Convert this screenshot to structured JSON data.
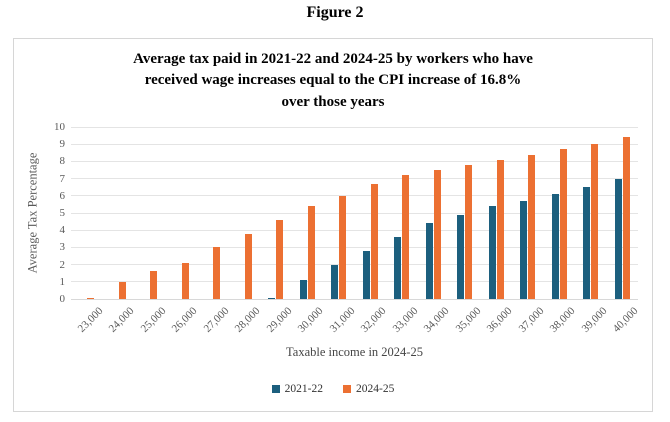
{
  "figure_label": "Figure 2",
  "chart_data": {
    "type": "bar",
    "title": "Average tax paid in 2021-22 and 2024-25 by workers who have received wage increases equal to the CPI increase of 16.8% over those years",
    "title_lines": [
      "Average tax paid in 2021-22 and 2024-25 by workers who have",
      "received wage increases equal to the CPI increase of 16.8%",
      "over those years"
    ],
    "categories": [
      "23,000",
      "24,000",
      "25,000",
      "26,000",
      "27,000",
      "28,000",
      "29,000",
      "30,000",
      "31,000",
      "32,000",
      "33,000",
      "34,000",
      "35,000",
      "36,000",
      "37,000",
      "38,000",
      "39,000",
      "40,000"
    ],
    "series": [
      {
        "name": "2021-22",
        "color": "#1c5f7e",
        "values": [
          0,
          0,
          0,
          0,
          0,
          0,
          0.07,
          1.1,
          2.0,
          2.8,
          3.6,
          4.4,
          4.9,
          5.4,
          5.7,
          6.1,
          6.5,
          7.0
        ]
      },
      {
        "name": "2024-25",
        "color": "#ec7032",
        "values": [
          0.05,
          1.0,
          1.6,
          2.1,
          3.0,
          3.8,
          4.6,
          5.4,
          6.0,
          6.7,
          7.2,
          7.5,
          7.8,
          8.1,
          8.4,
          8.7,
          9.0,
          9.4
        ]
      }
    ],
    "xlabel": "Taxable income in 2024-25",
    "ylabel": "Average  Tax Percentage",
    "ylim": [
      0,
      10
    ],
    "yticks": [
      0,
      1,
      2,
      3,
      4,
      5,
      6,
      7,
      8,
      9,
      10
    ],
    "grid": true,
    "legend_position": "bottom",
    "colors": {
      "grid": "#e4e4e4",
      "tick_text": "#595959",
      "title_text": "#000000",
      "box_border": "#d6d6d6"
    }
  }
}
